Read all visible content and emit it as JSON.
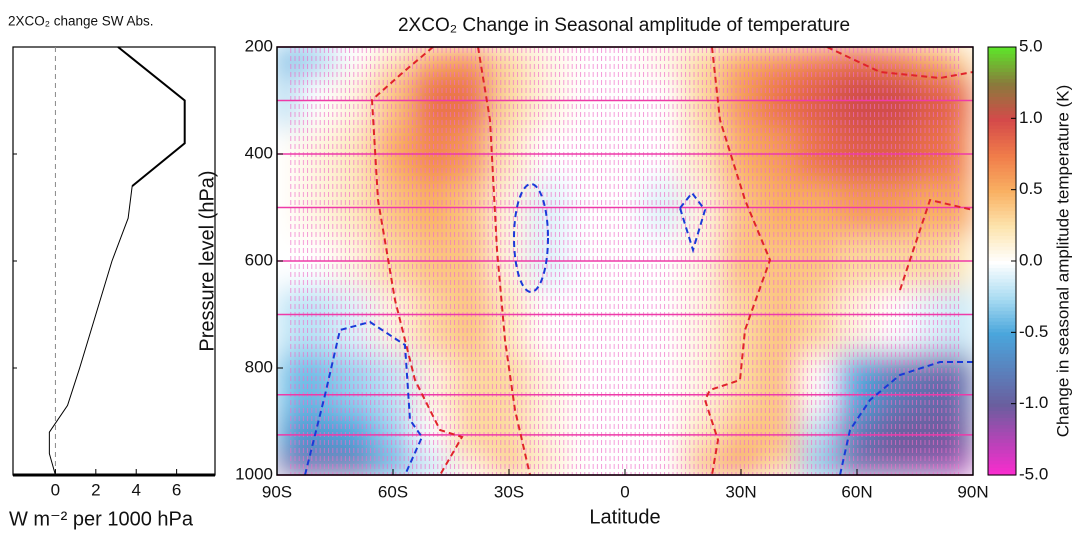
{
  "chart_data": [
    {
      "type": "line",
      "title": "2XCO₂ change SW Abs.",
      "xlabel": "W m⁻² per 1000 hPa",
      "xlim": [
        -2.1,
        7.9
      ],
      "xticks": [
        0,
        2,
        4,
        6
      ],
      "ylim": [
        1000,
        200
      ],
      "yticks": [
        200,
        400,
        600,
        800,
        1000
      ],
      "series": [
        {
          "color": "#000000",
          "width": 2,
          "x": [
            3.1,
            6.4,
            6.4,
            3.8
          ],
          "y": [
            200,
            300,
            380,
            460
          ]
        },
        {
          "color": "#000000",
          "width": 1,
          "x": [
            3.8,
            3.6,
            2.8,
            2.0,
            1.2,
            0.6,
            -0.3,
            -0.3,
            0
          ],
          "y": [
            460,
            520,
            600,
            700,
            800,
            870,
            920,
            960,
            1000
          ]
        }
      ]
    },
    {
      "type": "heatmap",
      "title": "2XCO₂  Change in Seasonal amplitude of temperature",
      "xlabel": "Latitude",
      "ylabel": "Pressure level (hPa)",
      "colorbar_label": "Change in seasonal amplitude temperature (K)",
      "xlim": [
        -90,
        90
      ],
      "xticks": [
        {
          "value": -90,
          "label": "90S"
        },
        {
          "value": -60,
          "label": "60S"
        },
        {
          "value": -30,
          "label": "30S"
        },
        0,
        {
          "value": 30,
          "label": "30N"
        },
        {
          "value": 60,
          "label": "60N"
        },
        {
          "value": 90,
          "label": "90N"
        }
      ],
      "ylim": [
        1000,
        200
      ],
      "yticks": [
        200,
        400,
        600,
        800,
        1000
      ],
      "cticks": [
        {
          "value": 5,
          "label": "5.0"
        },
        {
          "value": 1,
          "label": "1.0"
        },
        0.5,
        {
          "value": 0,
          "label": "0.0"
        },
        -0.5,
        {
          "value": -1,
          "label": "-1.0"
        },
        {
          "value": -5,
          "label": "-5.0"
        }
      ],
      "colorscale": [
        [
          -5,
          "#ff2ad0"
        ],
        [
          -1,
          "#6a5e9e"
        ],
        [
          -0.5,
          "#4aa6dc"
        ],
        [
          -0.25,
          "#aadcf2"
        ],
        [
          0,
          "#ffffff"
        ],
        [
          0.25,
          "#fde4ae"
        ],
        [
          0.5,
          "#f9b062"
        ],
        [
          0.75,
          "#f07c4a"
        ],
        [
          1,
          "#d44a4a"
        ],
        [
          3,
          "#8a7a3c"
        ],
        [
          5,
          "#5fe22a"
        ]
      ],
      "x": [
        -90,
        -80,
        -70,
        -60,
        -50,
        -40,
        -30,
        -20,
        -10,
        0,
        10,
        20,
        30,
        40,
        50,
        60,
        70,
        80,
        90
      ],
      "y": [
        200,
        300,
        400,
        500,
        600,
        700,
        850,
        925,
        1000
      ],
      "z": [
        [
          -0.5,
          -0.3,
          0,
          0.2,
          0.5,
          0.6,
          0.3,
          0.1,
          0,
          0,
          0.1,
          0.3,
          0.5,
          0.6,
          0.7,
          0.8,
          0.7,
          0.5,
          0.3
        ],
        [
          -0.3,
          0,
          0.1,
          0.4,
          0.8,
          0.8,
          0.3,
          0.1,
          0,
          0,
          0,
          0.3,
          0.6,
          0.8,
          0.9,
          1.1,
          1.1,
          0.9,
          0.8
        ],
        [
          0,
          0.1,
          0.2,
          0.5,
          0.7,
          0.6,
          0.2,
          0,
          0,
          0,
          0,
          0.2,
          0.5,
          0.6,
          0.8,
          0.9,
          0.9,
          0.8,
          0.7
        ],
        [
          0,
          0.1,
          0.2,
          0.4,
          0.5,
          0.4,
          0.1,
          -0.1,
          0,
          0,
          -0.1,
          0.1,
          0.4,
          0.5,
          0.5,
          0.6,
          0.6,
          0.5,
          0.6
        ],
        [
          0,
          0,
          0.1,
          0.3,
          0.4,
          0.4,
          0.1,
          -0.1,
          0,
          0,
          0,
          0.1,
          0.4,
          0.4,
          0.4,
          0.3,
          0.3,
          0.3,
          0.2
        ],
        [
          -0.2,
          -0.2,
          -0.1,
          0.1,
          0.3,
          0.4,
          0.2,
          0,
          0,
          0,
          0,
          0.1,
          0.3,
          0.4,
          0.3,
          0.1,
          0,
          -0.1,
          -0.2
        ],
        [
          -0.4,
          -0.4,
          -0.3,
          -0.2,
          0.1,
          0.3,
          0.3,
          0.1,
          0,
          0,
          0,
          0.1,
          0.3,
          0.4,
          0,
          -0.5,
          -0.8,
          -0.9,
          -0.9
        ],
        [
          -0.6,
          -0.6,
          -0.5,
          -0.3,
          0,
          0.3,
          0.3,
          0.1,
          0,
          0,
          0,
          0.2,
          0.4,
          0.4,
          -0.2,
          -0.8,
          -1.0,
          -1.1,
          -1.2
        ],
        [
          -1.2,
          -1.2,
          -1.0,
          -0.5,
          -0.2,
          0.1,
          0.4,
          0.2,
          0,
          0,
          0,
          0.5,
          0.6,
          0.3,
          -0.4,
          -1.2,
          -1.5,
          -2,
          -3
        ]
      ]
    }
  ]
}
